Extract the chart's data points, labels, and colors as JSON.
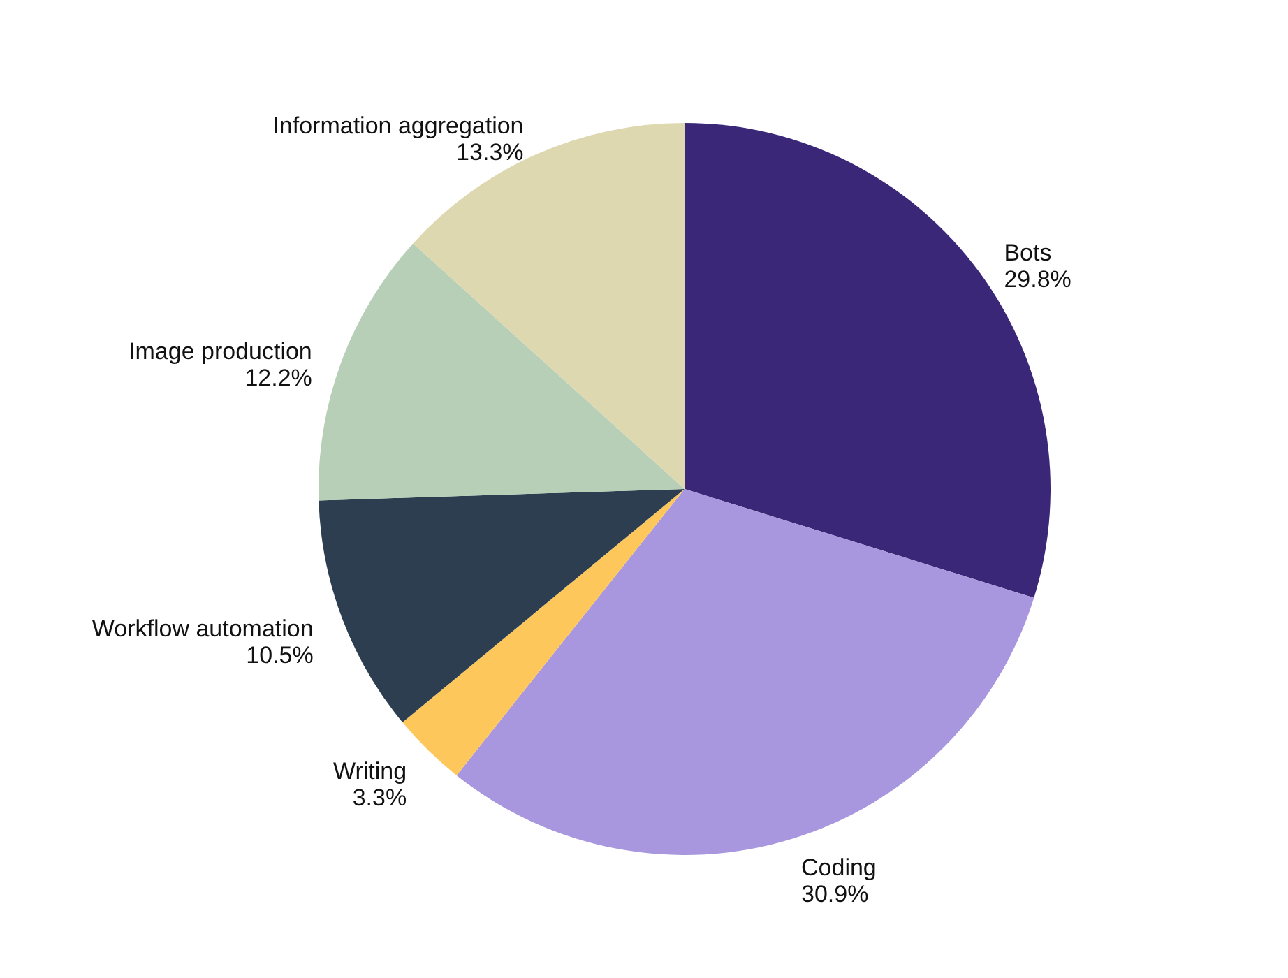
{
  "chart_data": {
    "type": "pie",
    "categories": [
      "Bots",
      "Coding",
      "Writing",
      "Workflow automation",
      "Image production",
      "Information aggregation"
    ],
    "values": [
      29.8,
      30.9,
      3.3,
      10.5,
      12.2,
      13.3
    ],
    "colors": [
      "#3b2778",
      "#a896de",
      "#fdc75c",
      "#2c3e50",
      "#b7cfb6",
      "#ddd8b0"
    ],
    "value_labels": [
      "29.8%",
      "30.9%",
      "3.3%",
      "10.5%",
      "12.2%",
      "13.3%"
    ]
  }
}
